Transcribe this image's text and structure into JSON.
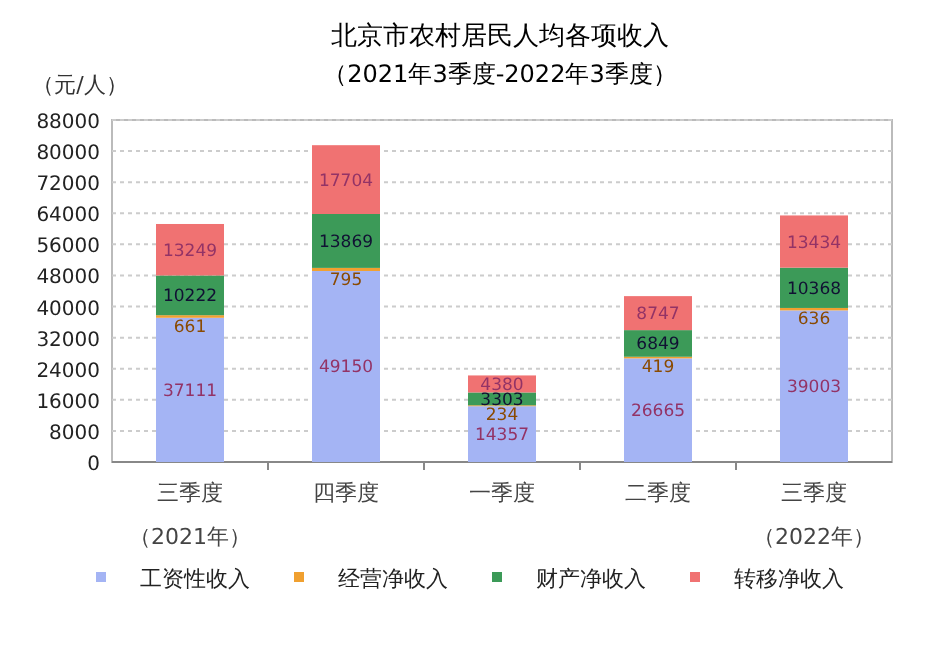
{
  "chart_data": {
    "type": "bar",
    "stacked": true,
    "title": "北京市农村居民人均各项收入",
    "subtitle": "（2021年3季度-2022年3季度）",
    "ylabel": "（元/人）",
    "annotations": [
      "（2021年）",
      "（2022年）"
    ],
    "categories": [
      "三季度",
      "四季度",
      "一季度",
      "二季度",
      "三季度"
    ],
    "series": [
      {
        "name": "工资性收入",
        "color": "#a4b4f4",
        "values": [
          37111,
          49150,
          14357,
          26665,
          39003
        ]
      },
      {
        "name": "经营净收入",
        "color": "#f0a030",
        "values": [
          661,
          795,
          234,
          419,
          636
        ]
      },
      {
        "name": "财产净收入",
        "color": "#3c9a58",
        "values": [
          10222,
          13869,
          3303,
          6849,
          10368
        ]
      },
      {
        "name": "转移净收入",
        "color": "#f07272",
        "values": [
          13249,
          17704,
          4380,
          8747,
          13434
        ]
      }
    ],
    "ylim": [
      0,
      88000
    ],
    "yticks": [
      0,
      8000,
      16000,
      24000,
      32000,
      40000,
      48000,
      56000,
      64000,
      72000,
      80000,
      88000
    ],
    "grid": "y",
    "legend": "bottom",
    "data_labels": true
  }
}
